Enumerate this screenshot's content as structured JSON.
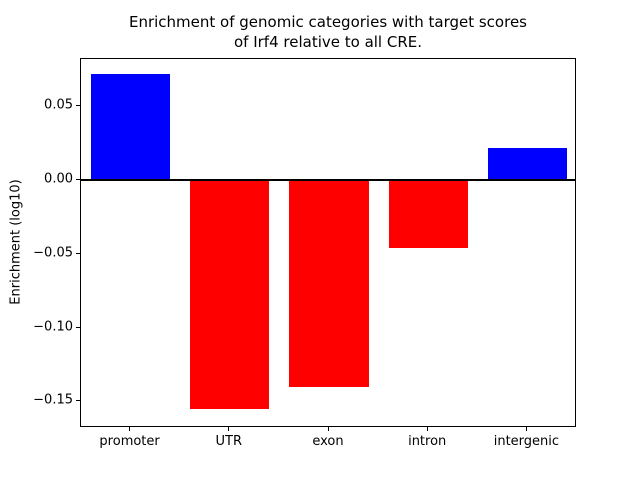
{
  "chart_data": {
    "type": "bar",
    "title": "Enrichment of genomic categories with target scores\nof Irf4 relative to all CRE.",
    "xlabel": "",
    "ylabel": "Enrichment (log10)",
    "categories": [
      "promoter",
      "UTR",
      "exon",
      "intron",
      "intergenic"
    ],
    "values": [
      0.072,
      -0.155,
      -0.14,
      -0.046,
      0.022
    ],
    "ylim": [
      -0.168,
      0.082
    ],
    "yticks": [
      0.05,
      0.0,
      -0.05,
      -0.1,
      -0.15
    ],
    "ytick_labels": [
      "0.05",
      "0.00",
      "−0.05",
      "−0.10",
      "−0.15"
    ],
    "positive_color": "#0000ff",
    "negative_color": "#ff0000",
    "zero_line": true,
    "grid": false,
    "legend": "none",
    "bar_width_fraction": 0.8
  }
}
